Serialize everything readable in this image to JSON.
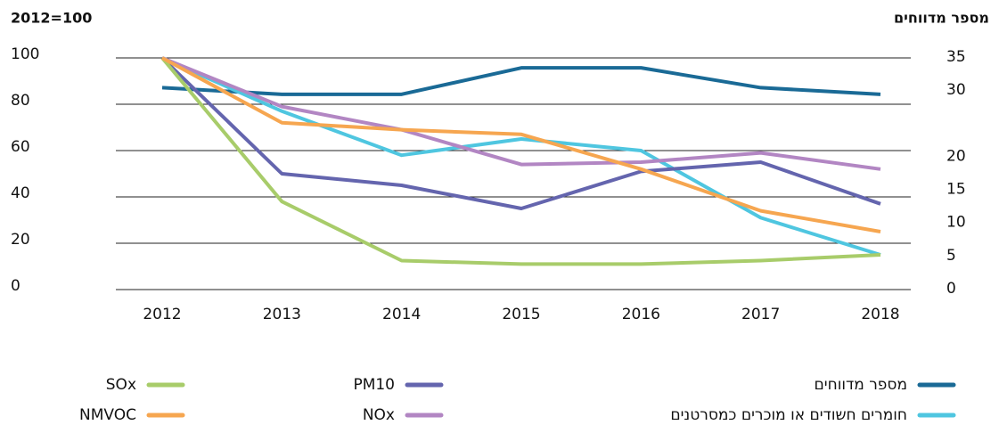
{
  "chart_data": {
    "type": "line",
    "y_label": "2012=100",
    "y2_label": "מספר מדווחים",
    "categories": [
      "2012",
      "2013",
      "2014",
      "2015",
      "2016",
      "2017",
      "2018"
    ],
    "ylim": [
      0,
      100
    ],
    "yticks": [
      0,
      20,
      40,
      60,
      80,
      100
    ],
    "y2lim": [
      0,
      35
    ],
    "y2ticks": [
      0,
      5,
      10,
      15,
      20,
      30,
      35
    ],
    "grid": true,
    "series": [
      {
        "name": "מספר מדווחים",
        "color": "#1a6a96",
        "axis": "y2",
        "values": [
          30.5,
          29.5,
          29.5,
          33.5,
          33.5,
          30.5,
          29.5
        ]
      },
      {
        "name": "חומרים חשודים או מוכרים כמסרטנים",
        "color": "#4fc6e0",
        "values": [
          100,
          77,
          58,
          65,
          60,
          31,
          15
        ]
      },
      {
        "name": "PM10",
        "color": "#6465ae",
        "values": [
          100,
          50,
          45,
          35,
          51,
          55,
          37
        ]
      },
      {
        "name": "NOx",
        "color": "#b286c3",
        "values": [
          100,
          79,
          69,
          54,
          55,
          59,
          52
        ]
      },
      {
        "name": "SOx",
        "color": "#a8cc6a",
        "values": [
          100,
          38,
          12.5,
          11,
          11,
          12.5,
          15
        ]
      },
      {
        "name": "NMVOC",
        "color": "#f6a650",
        "values": [
          100,
          72,
          69,
          67,
          52,
          34,
          25
        ]
      }
    ]
  }
}
